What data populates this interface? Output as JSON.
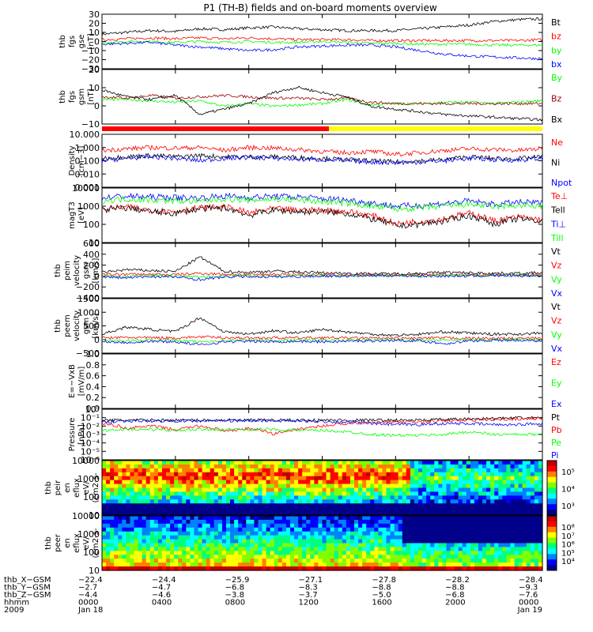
{
  "title": "P1 (TH-B) fields and on-board moments overview",
  "colors": {
    "black": "#000000",
    "red": "#ff0000",
    "green": "#00ff00",
    "blue": "#0000ff",
    "darkred": "#990000",
    "yellow": "#ffff00"
  },
  "chart_data": [
    {
      "id": "fgs",
      "type": "line",
      "ylabel": [
        "thb",
        "fgs",
        "gse",
        "[nT]"
      ],
      "yticks": [
        "30",
        "20",
        "10",
        "0",
        "−10",
        "−20",
        "−30"
      ],
      "ylim": [
        -30,
        30
      ],
      "series": [
        {
          "name": "Bt",
          "color": "black",
          "values": [
            8,
            10,
            12,
            11,
            14,
            13,
            15,
            16,
            14,
            13,
            12,
            12,
            12,
            14,
            16,
            18,
            22,
            24,
            25
          ]
        },
        {
          "name": "bz",
          "color": "red",
          "values": [
            2,
            3,
            4,
            3,
            4,
            3,
            4,
            3,
            2,
            2,
            2,
            1,
            1,
            1,
            1,
            1,
            1,
            1,
            2
          ]
        },
        {
          "name": "by",
          "color": "green",
          "values": [
            -1,
            0,
            0,
            -1,
            0,
            -1,
            0,
            -1,
            -1,
            0,
            -1,
            -2,
            -2,
            -3,
            -3,
            -3,
            -4,
            -4,
            -4
          ]
        },
        {
          "name": "bx",
          "color": "blue",
          "values": [
            -3,
            -2,
            -1,
            -4,
            -6,
            -8,
            -10,
            -9,
            -6,
            -5,
            -4,
            -4,
            -6,
            -10,
            -14,
            -16,
            -17,
            -18,
            -19
          ]
        }
      ]
    },
    {
      "id": "fgs_gsm",
      "type": "line",
      "ylabel": [
        "thb",
        "fgs",
        "gsm",
        "[nT]"
      ],
      "yticks": [
        "20",
        "10",
        "0",
        "−10"
      ],
      "ylim": [
        -15,
        25
      ],
      "series": [
        {
          "name": "By",
          "color": "green",
          "values": [
            3,
            3,
            2,
            1,
            2,
            -2,
            0,
            -2,
            -1,
            0,
            3,
            -1,
            0,
            0,
            1,
            1,
            0,
            1,
            2
          ]
        },
        {
          "name": "Bz",
          "color": "darkred",
          "values": [
            5,
            4,
            6,
            4,
            5,
            6,
            5,
            4,
            4,
            3,
            4,
            1,
            0,
            0,
            0,
            0,
            0,
            0,
            0
          ]
        },
        {
          "name": "Bx",
          "color": "black",
          "values": [
            10,
            5,
            3,
            6,
            -8,
            -4,
            0,
            8,
            12,
            8,
            5,
            -2,
            -4,
            -6,
            -8,
            -9,
            -10,
            -11,
            -12
          ]
        }
      ]
    },
    {
      "id": "density",
      "type": "line",
      "ylabel": [
        "Density",
        "[cm−3]"
      ],
      "yticks": [
        "10.000",
        "1.000",
        "0.100",
        "0.010",
        "0.001"
      ],
      "yscale": "log",
      "ylim": [
        0.001,
        10
      ],
      "series": [
        {
          "name": "Ne",
          "color": "red",
          "values": [
            0.6,
            0.8,
            1,
            0.9,
            1,
            0.6,
            1,
            0.9,
            0.7,
            0.5,
            0.4,
            0.5,
            0.3,
            0.4,
            0.6,
            0.8,
            0.7,
            0.6,
            0.8
          ]
        },
        {
          "name": "Ni",
          "color": "black",
          "values": [
            0.15,
            0.2,
            0.25,
            0.2,
            0.25,
            0.2,
            0.2,
            0.2,
            0.18,
            0.15,
            0.12,
            0.1,
            0.08,
            0.1,
            0.12,
            0.2,
            0.15,
            0.14,
            0.2
          ]
        },
        {
          "name": "Npot",
          "color": "blue",
          "values": [
            0.1,
            0.15,
            0.2,
            0.15,
            0.1,
            0.15,
            0.18,
            0.15,
            0.13,
            0.12,
            0.1,
            0.08,
            0.07,
            0.08,
            0.1,
            0.15,
            0.12,
            0.11,
            0.15
          ]
        }
      ]
    },
    {
      "id": "temperature",
      "type": "line",
      "ylabel": [
        "magT3",
        "[eV]"
      ],
      "yticks": [
        "10000",
        "1000",
        "100",
        "10"
      ],
      "yscale": "log",
      "ylim": [
        10,
        10000
      ],
      "series": [
        {
          "name": "Te⊥",
          "color": "red",
          "values": [
            700,
            900,
            600,
            500,
            800,
            900,
            400,
            700,
            600,
            600,
            500,
            300,
            100,
            150,
            200,
            400,
            150,
            250,
            180
          ]
        },
        {
          "name": "Tell",
          "color": "black",
          "values": [
            600,
            800,
            500,
            400,
            700,
            800,
            300,
            600,
            500,
            500,
            400,
            200,
            80,
            100,
            150,
            300,
            100,
            200,
            150
          ]
        },
        {
          "name": "Ti⊥",
          "color": "blue",
          "values": [
            3000,
            3500,
            3200,
            3000,
            2800,
            3600,
            3000,
            3500,
            3200,
            2600,
            2200,
            1500,
            1000,
            1100,
            1400,
            1900,
            1200,
            1600,
            1500
          ]
        },
        {
          "name": "Till",
          "color": "green",
          "values": [
            2000,
            2500,
            2200,
            2000,
            1800,
            2600,
            2100,
            2500,
            2200,
            1800,
            1500,
            1000,
            700,
            800,
            1000,
            1300,
            900,
            1100,
            1000
          ]
        }
      ]
    },
    {
      "id": "pevm_velocity",
      "type": "line",
      "ylabel": [
        "thb",
        "peim",
        "velocity",
        "gsm",
        "[km/s]"
      ],
      "yticks": [
        "600",
        "400",
        "200",
        "0",
        "−200",
        "−400"
      ],
      "ylim": [
        -500,
        700
      ],
      "series": [
        {
          "name": "Vt",
          "color": "black",
          "values": [
            60,
            120,
            100,
            80,
            400,
            80,
            60,
            90,
            70,
            50,
            40,
            30,
            30,
            40,
            60,
            50,
            40,
            40,
            50
          ]
        },
        {
          "name": "Vz",
          "color": "red",
          "values": [
            10,
            20,
            15,
            10,
            40,
            20,
            10,
            20,
            15,
            10,
            5,
            5,
            5,
            10,
            10,
            10,
            5,
            5,
            10
          ]
        },
        {
          "name": "Vy",
          "color": "green",
          "values": [
            -20,
            -30,
            -10,
            -20,
            -40,
            -20,
            -10,
            -20,
            -15,
            -10,
            -10,
            -5,
            -5,
            -10,
            -10,
            -10,
            -5,
            -5,
            -10
          ]
        },
        {
          "name": "Vx",
          "color": "blue",
          "values": [
            -40,
            -60,
            -30,
            -40,
            -100,
            -40,
            -30,
            -40,
            -30,
            -20,
            -20,
            -10,
            -10,
            -20,
            -20,
            -20,
            -10,
            -10,
            -20
          ]
        }
      ]
    },
    {
      "id": "peem_velocity",
      "type": "line",
      "ylabel": [
        "thb",
        "peem",
        "velocity",
        "gsm",
        "[km/s]"
      ],
      "yticks": [
        "1500",
        "1000",
        "500",
        "0",
        "−500"
      ],
      "ylim": [
        -600,
        1700
      ],
      "series": [
        {
          "name": "Vt",
          "color": "black",
          "values": [
            200,
            500,
            400,
            300,
            900,
            300,
            200,
            350,
            250,
            400,
            300,
            200,
            150,
            200,
            300,
            250,
            200,
            200,
            250
          ]
        },
        {
          "name": "Vz",
          "color": "red",
          "values": [
            40,
            60,
            50,
            40,
            90,
            50,
            40,
            50,
            40,
            50,
            40,
            30,
            20,
            30,
            40,
            30,
            20,
            20,
            30
          ]
        },
        {
          "name": "Vy",
          "color": "green",
          "values": [
            -60,
            -80,
            -50,
            -60,
            -120,
            -60,
            -50,
            -60,
            -50,
            -60,
            -50,
            -40,
            -30,
            -40,
            -50,
            -40,
            -30,
            -30,
            -40
          ]
        },
        {
          "name": "Vx",
          "color": "blue",
          "values": [
            -100,
            -150,
            -100,
            -120,
            -250,
            -120,
            -100,
            -120,
            -100,
            -120,
            -100,
            -80,
            -60,
            -80,
            -200,
            -80,
            -60,
            -60,
            -80
          ]
        }
      ]
    },
    {
      "id": "efield",
      "type": "line",
      "ylabel": [
        "E=−VxB",
        "[mV/m]"
      ],
      "yticks": [
        "1.0",
        "0.8",
        "0.6",
        "0.4",
        "0.2",
        "0.0"
      ],
      "ylim": [
        0,
        1
      ],
      "series": [
        {
          "name": "Ez",
          "color": "red",
          "values": []
        },
        {
          "name": "Ey",
          "color": "green",
          "values": []
        },
        {
          "name": "Ex",
          "color": "blue",
          "values": []
        }
      ]
    },
    {
      "id": "pressure",
      "type": "line",
      "ylabel": [
        "Pressure",
        "[nPa]"
      ],
      "yticks": [
        "10⁰",
        "10⁻¹",
        "10⁻²",
        "10⁻³",
        "10⁻⁴",
        "10⁻⁵",
        "10⁻⁶"
      ],
      "yscale": "log",
      "ylim": [
        1e-06,
        1
      ],
      "series": [
        {
          "name": "Pt",
          "color": "black",
          "values": [
            0.05,
            0.05,
            0.05,
            0.05,
            0.05,
            0.05,
            0.05,
            0.05,
            0.05,
            0.05,
            0.05,
            0.05,
            0.05,
            0.05,
            0.06,
            0.07,
            0.08,
            0.09,
            0.1
          ]
        },
        {
          "name": "Pb",
          "color": "red",
          "values": [
            0.02,
            0.005,
            0.01,
            0.003,
            0.01,
            0.002,
            0.005,
            0.001,
            0.004,
            0.01,
            0.02,
            0.03,
            0.03,
            0.03,
            0.04,
            0.05,
            0.06,
            0.07,
            0.08
          ]
        },
        {
          "name": "Pe",
          "color": "green",
          "values": [
            0.003,
            0.004,
            0.004,
            0.003,
            0.004,
            0.004,
            0.004,
            0.004,
            0.003,
            0.003,
            0.002,
            0.001,
            0.0008,
            0.0008,
            0.001,
            0.002,
            0.001,
            0.001,
            0.001
          ]
        },
        {
          "name": "Pi",
          "color": "blue",
          "values": [
            0.03,
            0.04,
            0.04,
            0.04,
            0.04,
            0.045,
            0.04,
            0.045,
            0.04,
            0.035,
            0.03,
            0.02,
            0.015,
            0.015,
            0.02,
            0.02,
            0.015,
            0.015,
            0.02
          ]
        }
      ]
    },
    {
      "id": "peir_spectrogram",
      "type": "heatmap",
      "ylabel": [
        "thb",
        "peir",
        "en",
        "eflux",
        "eV/",
        "(cm2-s-",
        "sr-eV)"
      ],
      "yticks": [
        "10000",
        "1000",
        "100",
        "10"
      ],
      "yscale": "log",
      "ylim": [
        10,
        20000
      ],
      "colorbar_ticks": [
        "10⁵",
        "10⁴",
        "10³"
      ]
    },
    {
      "id": "peer_spectrogram",
      "type": "heatmap",
      "ylabel": [
        "thb",
        "peer",
        "en",
        "eflux",
        "eV/",
        "(cm2-s-",
        "sr-eV)"
      ],
      "yticks": [
        "10000",
        "1000",
        "100",
        "10"
      ],
      "yscale": "log",
      "ylim": [
        10,
        20000
      ],
      "colorbar_ticks": [
        "10⁸",
        "10⁷",
        "10⁶",
        "10⁵",
        "10⁴"
      ]
    }
  ],
  "xaxis": {
    "rows": [
      {
        "label": "thb_X−GSM",
        "values": [
          "−22.4",
          "−24.4",
          "−25.9",
          "−27.1",
          "−27.8",
          "−28.2",
          "−28.4"
        ]
      },
      {
        "label": "thb_Y−GSM",
        "values": [
          "−2.7",
          "−4.7",
          "−6.8",
          "−8.3",
          "−8.8",
          "−8.8",
          "−9.3"
        ]
      },
      {
        "label": "thb_Z−GSM",
        "values": [
          "−4.4",
          "−4.6",
          "−3.8",
          "−3.7",
          "−5.0",
          "−6.8",
          "−7.6"
        ]
      },
      {
        "label": "hhmm",
        "values": [
          "0000",
          "0400",
          "0800",
          "1200",
          "1600",
          "2000",
          "0000"
        ]
      },
      {
        "label": "2009",
        "values": [
          "Jan 18",
          "",
          "",
          "",
          "",
          "",
          "Jan 19"
        ]
      }
    ]
  }
}
